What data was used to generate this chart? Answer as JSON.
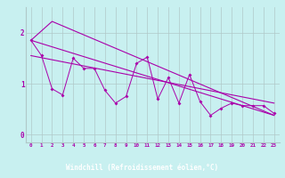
{
  "background_color": "#c8f0f0",
  "grid_color": "#b0c8c8",
  "line_color": "#aa00aa",
  "xlabel": "Windchill (Refroidissement éolien,°C)",
  "xlabel_color": "#ffffff",
  "xlabel_bg": "#880088",
  "tick_color": "#aa00aa",
  "xlim": [
    -0.5,
    23.5
  ],
  "ylim": [
    -0.15,
    2.5
  ],
  "yticks": [
    0,
    1,
    2
  ],
  "xticks": [
    0,
    1,
    2,
    3,
    4,
    5,
    6,
    7,
    8,
    9,
    10,
    11,
    12,
    13,
    14,
    15,
    16,
    17,
    18,
    19,
    20,
    21,
    22,
    23
  ],
  "series1_x": [
    0,
    1,
    2,
    3,
    4,
    5,
    6,
    7,
    8,
    9,
    10,
    11,
    12,
    13,
    14,
    15,
    16,
    17,
    18,
    19,
    20,
    21,
    22,
    23
  ],
  "series1_y": [
    1.85,
    1.55,
    0.9,
    0.78,
    1.5,
    1.3,
    1.3,
    0.87,
    0.62,
    0.75,
    1.4,
    1.52,
    0.7,
    1.12,
    0.62,
    1.18,
    0.65,
    0.38,
    0.52,
    0.62,
    0.57,
    0.57,
    0.57,
    0.42
  ],
  "series2_x": [
    0,
    2,
    23
  ],
  "series2_y": [
    1.85,
    2.22,
    0.38
  ],
  "series3_x": [
    0,
    23
  ],
  "series3_y": [
    1.55,
    0.62
  ],
  "series4_x": [
    0,
    23
  ],
  "series4_y": [
    1.85,
    0.38
  ]
}
